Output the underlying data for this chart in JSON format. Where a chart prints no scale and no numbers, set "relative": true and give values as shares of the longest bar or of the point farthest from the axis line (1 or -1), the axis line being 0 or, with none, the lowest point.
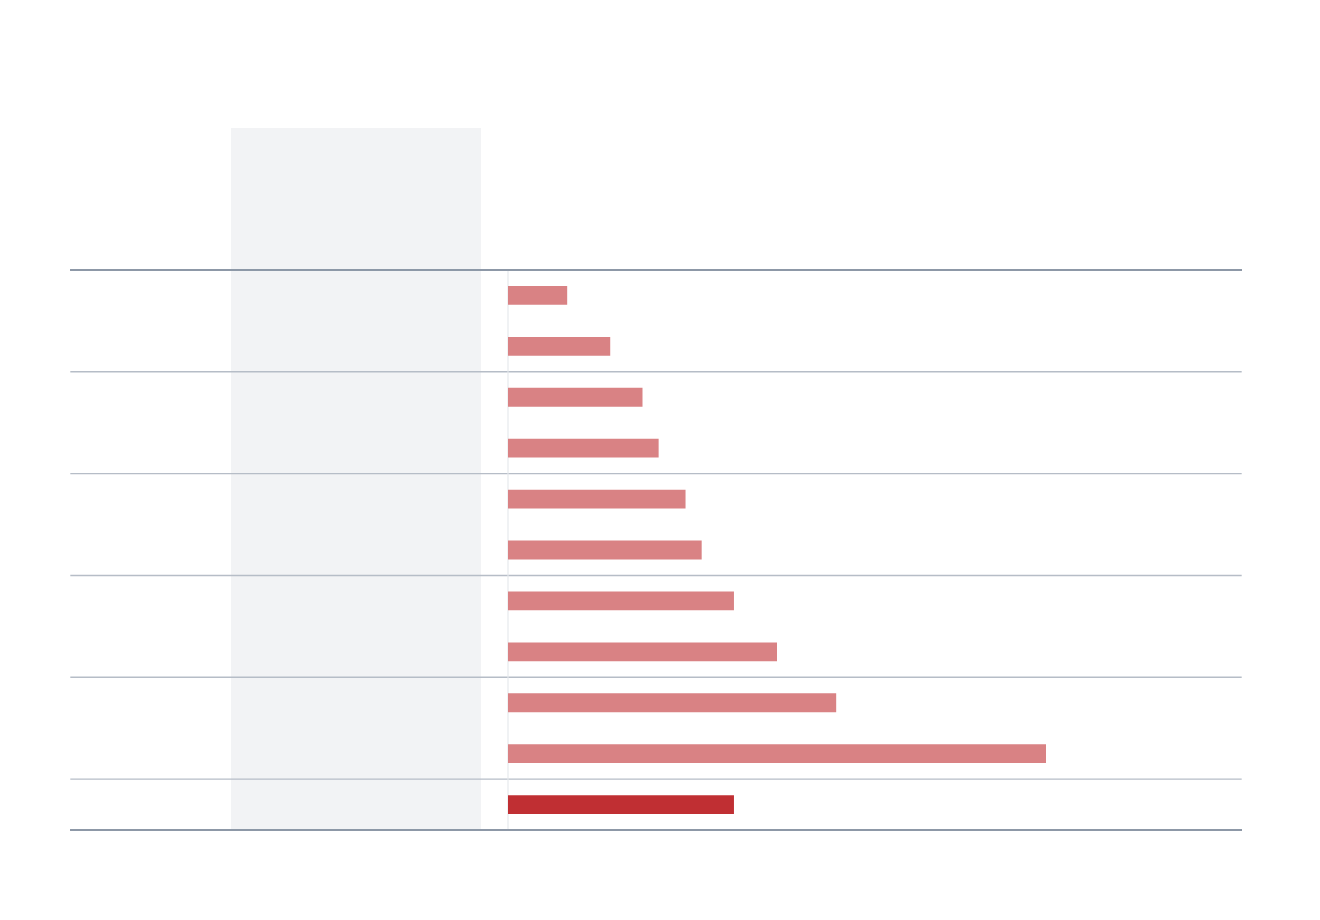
{
  "chart_data": {
    "type": "bar",
    "orientation": "horizontal",
    "relative": true,
    "categories": [
      null,
      null,
      null,
      null,
      null,
      null,
      null,
      null,
      null,
      null,
      null
    ],
    "values": [
      0.11,
      0.19,
      0.25,
      0.28,
      0.33,
      0.36,
      0.42,
      0.5,
      0.61,
      1,
      0.42
    ],
    "colors": [
      "#d98284",
      "#d98284",
      "#d98284",
      "#d98284",
      "#d98284",
      "#d98284",
      "#d98284",
      "#d98284",
      "#d98284",
      "#d98284",
      "#c02f33"
    ]
  }
}
